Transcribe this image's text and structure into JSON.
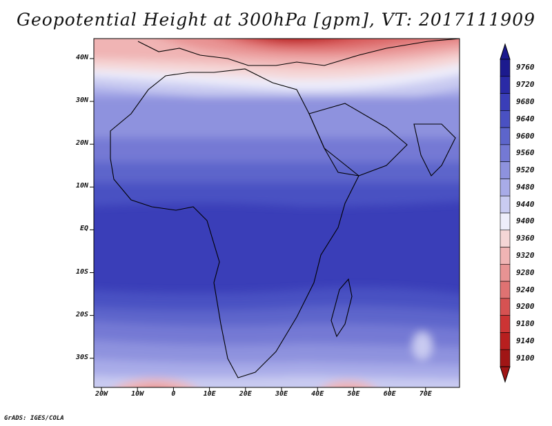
{
  "title": "Geopotential Height at 300hPa [gpm], VT: 2017111909",
  "credit": "GrADS: IGES/COLA",
  "latitude_labels": [
    "40N",
    "30N",
    "20N",
    "10N",
    "EQ",
    "10S",
    "20S",
    "30S"
  ],
  "longitude_labels": [
    "20W",
    "10W",
    "0",
    "10E",
    "20E",
    "30E",
    "40E",
    "50E",
    "60E",
    "70E"
  ],
  "colorbar": {
    "levels": [
      "9760",
      "9720",
      "9680",
      "9640",
      "9600",
      "9560",
      "9520",
      "9480",
      "9440",
      "9400",
      "9360",
      "9320",
      "9280",
      "9240",
      "9200",
      "9180",
      "9140",
      "9100"
    ],
    "colors": [
      "#1c1a8e",
      "#2a2aa6",
      "#3a3eb8",
      "#4a51c2",
      "#5d65cb",
      "#7479d4",
      "#8e92de",
      "#a8abe8",
      "#c9cbf1",
      "#eeeefb",
      "#f5d6d6",
      "#f0b4b4",
      "#e89393",
      "#df7272",
      "#d65252",
      "#cc3434",
      "#b81f1f",
      "#a01515"
    ],
    "min_value": 9100,
    "max_value": 9760,
    "extend": "both"
  },
  "map_extent": {
    "lon_min": -22,
    "lon_max": 80,
    "lat_min": -37,
    "lat_max": 45
  }
}
